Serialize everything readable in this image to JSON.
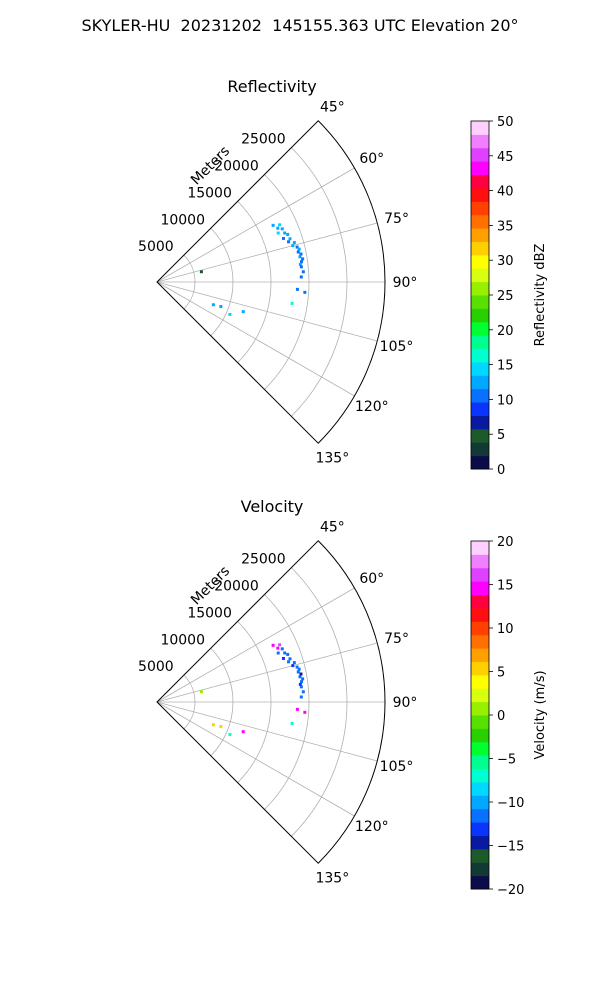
{
  "figure": {
    "title": "SKYLER-HU  20231202  145155.363 UTC Elevation 20°"
  },
  "chart_data": [
    {
      "type": "scatter",
      "subtype": "polar sector (radar PPI)",
      "title": "Reflectivity",
      "radial_label": "Meters",
      "radial_ticks": [
        "5000",
        "10000",
        "15000",
        "20000",
        "25000"
      ],
      "radial_tick_values": [
        5000,
        10000,
        15000,
        20000,
        25000
      ],
      "range_max": 30000,
      "angle_ticks": [
        "45°",
        "60°",
        "75°",
        "90°",
        "105°",
        "120°",
        "135°"
      ],
      "angle_tick_values": [
        45,
        60,
        75,
        90,
        105,
        120,
        135
      ],
      "angle_range": [
        45,
        135
      ],
      "grid": true,
      "colorbar": {
        "label": "Reflectivity dBZ",
        "min": 0,
        "max": 50,
        "ticks": [
          "0",
          "5",
          "10",
          "15",
          "20",
          "25",
          "30",
          "35",
          "40",
          "45",
          "50"
        ],
        "tick_values": [
          0,
          5,
          10,
          15,
          20,
          25,
          30,
          35,
          40,
          45,
          50
        ],
        "colors": [
          "#0c0c4a",
          "#123a35",
          "#1c5a2a",
          "#0a1aa0",
          "#0a35ff",
          "#0a70ff",
          "#00a8ff",
          "#00d8ff",
          "#00ffd0",
          "#00ff90",
          "#00ff30",
          "#28d000",
          "#58e000",
          "#98f000",
          "#d8ff10",
          "#ffff00",
          "#ffd000",
          "#ffa000",
          "#ff7000",
          "#ff4000",
          "#ff1010",
          "#ff0040",
          "#ff00ff",
          "#e040ff",
          "#f080ff",
          "#ffd0ff"
        ]
      },
      "points": [
        {
          "range": 17000,
          "angle": 64,
          "value": 13
        },
        {
          "range": 17800,
          "angle": 65,
          "value": 14
        },
        {
          "range": 17400,
          "angle": 66,
          "value": 13
        },
        {
          "range": 17900,
          "angle": 67,
          "value": 12
        },
        {
          "range": 17200,
          "angle": 68,
          "value": 14
        },
        {
          "range": 18000,
          "angle": 69,
          "value": 13
        },
        {
          "range": 18300,
          "angle": 70,
          "value": 12
        },
        {
          "range": 17600,
          "angle": 71,
          "value": 11
        },
        {
          "range": 18400,
          "angle": 72,
          "value": 12
        },
        {
          "range": 18100,
          "angle": 73,
          "value": 10
        },
        {
          "range": 18800,
          "angle": 74,
          "value": 13
        },
        {
          "range": 18500,
          "angle": 75,
          "value": 12
        },
        {
          "range": 19000,
          "angle": 76,
          "value": 11
        },
        {
          "range": 19200,
          "angle": 77,
          "value": 12
        },
        {
          "range": 19000,
          "angle": 78,
          "value": 10
        },
        {
          "range": 19300,
          "angle": 79,
          "value": 11
        },
        {
          "range": 19100,
          "angle": 80,
          "value": 12
        },
        {
          "range": 19400,
          "angle": 81,
          "value": 10
        },
        {
          "range": 19200,
          "angle": 82,
          "value": 11
        },
        {
          "range": 19000,
          "angle": 83,
          "value": 12
        },
        {
          "range": 19100,
          "angle": 84,
          "value": 11
        },
        {
          "range": 19300,
          "angle": 86,
          "value": 10
        },
        {
          "range": 19000,
          "angle": 88,
          "value": 11
        },
        {
          "range": 18500,
          "angle": 93,
          "value": 10
        },
        {
          "range": 19500,
          "angle": 94,
          "value": 11
        },
        {
          "range": 18000,
          "angle": 99,
          "value": 16
        },
        {
          "range": 6000,
          "angle": 77,
          "value": 5
        },
        {
          "range": 8000,
          "angle": 112,
          "value": 12
        },
        {
          "range": 9000,
          "angle": 111,
          "value": 12
        },
        {
          "range": 10500,
          "angle": 114,
          "value": 14
        },
        {
          "range": 12000,
          "angle": 109,
          "value": 13
        }
      ]
    },
    {
      "type": "scatter",
      "subtype": "polar sector (radar PPI)",
      "title": "Velocity",
      "radial_label": "Meters",
      "radial_ticks": [
        "5000",
        "10000",
        "15000",
        "20000",
        "25000"
      ],
      "radial_tick_values": [
        5000,
        10000,
        15000,
        20000,
        25000
      ],
      "range_max": 30000,
      "angle_ticks": [
        "45°",
        "60°",
        "75°",
        "90°",
        "105°",
        "120°",
        "135°"
      ],
      "angle_tick_values": [
        45,
        60,
        75,
        90,
        105,
        120,
        135
      ],
      "angle_range": [
        45,
        135
      ],
      "grid": true,
      "colorbar": {
        "label": "Velocity (m/s)",
        "min": -20,
        "max": 20,
        "ticks": [
          "−20",
          "−15",
          "−10",
          "−5",
          "0",
          "5",
          "10",
          "15",
          "20"
        ],
        "tick_values": [
          -20,
          -15,
          -10,
          -5,
          0,
          5,
          10,
          15,
          20
        ],
        "colors": [
          "#0c0c4a",
          "#123a35",
          "#1c5a2a",
          "#0a1aa0",
          "#0a35ff",
          "#0a70ff",
          "#00a8ff",
          "#00d8ff",
          "#00ffd0",
          "#00ff90",
          "#00ff30",
          "#28d000",
          "#58e000",
          "#98f000",
          "#d8ff10",
          "#ffff00",
          "#ffd000",
          "#ffa000",
          "#ff7000",
          "#ff4000",
          "#ff1010",
          "#ff0040",
          "#ff00ff",
          "#e040ff",
          "#f080ff",
          "#ffd0ff"
        ]
      },
      "points": [
        {
          "range": 17000,
          "angle": 64,
          "value": 15
        },
        {
          "range": 17800,
          "angle": 65,
          "value": 16
        },
        {
          "range": 17400,
          "angle": 66,
          "value": 14
        },
        {
          "range": 17900,
          "angle": 67,
          "value": -11
        },
        {
          "range": 17200,
          "angle": 68,
          "value": -12
        },
        {
          "range": 18000,
          "angle": 69,
          "value": -11
        },
        {
          "range": 18300,
          "angle": 70,
          "value": -12
        },
        {
          "range": 17600,
          "angle": 71,
          "value": -13
        },
        {
          "range": 18400,
          "angle": 72,
          "value": -12
        },
        {
          "range": 18100,
          "angle": 73,
          "value": -11
        },
        {
          "range": 18800,
          "angle": 74,
          "value": -12
        },
        {
          "range": 18500,
          "angle": 75,
          "value": -13
        },
        {
          "range": 19000,
          "angle": 76,
          "value": -12
        },
        {
          "range": 19200,
          "angle": 77,
          "value": -11
        },
        {
          "range": 19000,
          "angle": 78,
          "value": -12
        },
        {
          "range": 19300,
          "angle": 79,
          "value": -14
        },
        {
          "range": 19100,
          "angle": 80,
          "value": -12
        },
        {
          "range": 19400,
          "angle": 81,
          "value": -11
        },
        {
          "range": 19200,
          "angle": 82,
          "value": -12
        },
        {
          "range": 19000,
          "angle": 83,
          "value": -13
        },
        {
          "range": 19100,
          "angle": 84,
          "value": -12
        },
        {
          "range": 19300,
          "angle": 86,
          "value": -11
        },
        {
          "range": 19000,
          "angle": 88,
          "value": -12
        },
        {
          "range": 18500,
          "angle": 93,
          "value": 14
        },
        {
          "range": 19500,
          "angle": 94,
          "value": 15
        },
        {
          "range": 18000,
          "angle": 99,
          "value": -7
        },
        {
          "range": 6000,
          "angle": 77,
          "value": 1
        },
        {
          "range": 8000,
          "angle": 112,
          "value": 6
        },
        {
          "range": 9000,
          "angle": 111,
          "value": 5
        },
        {
          "range": 10500,
          "angle": 114,
          "value": -7
        },
        {
          "range": 12000,
          "angle": 109,
          "value": 15
        }
      ]
    }
  ]
}
